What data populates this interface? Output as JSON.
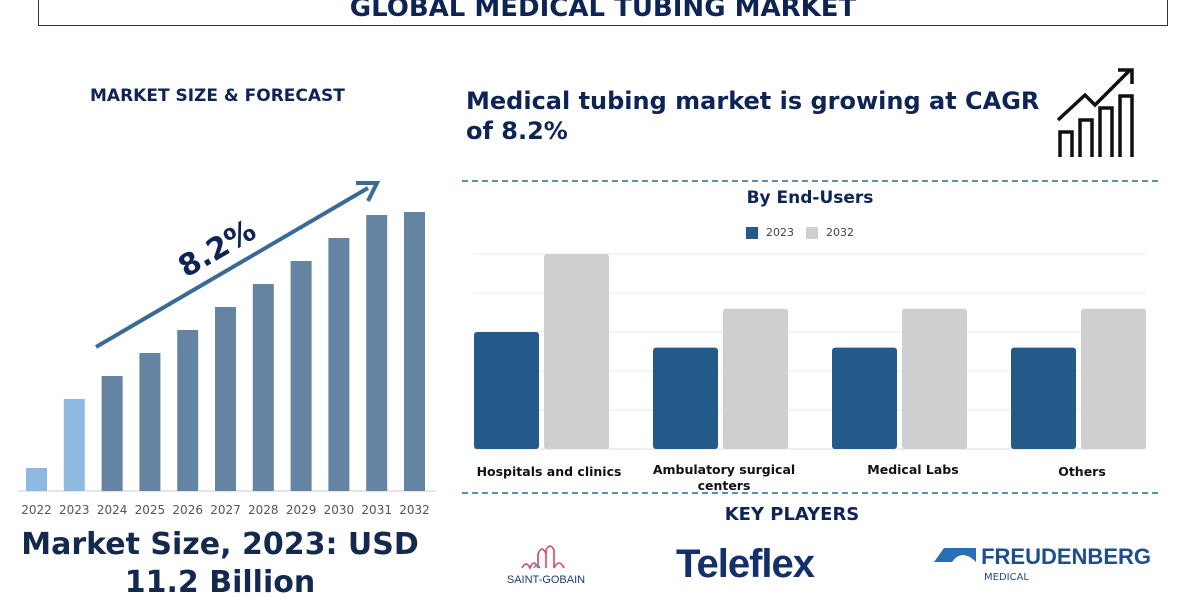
{
  "title": "GLOBAL MEDICAL TUBING MARKET",
  "left_heading": "MARKET SIZE & FORECAST",
  "cagr_text": "Medical tubing market is growing at CAGR of 8.2%",
  "market_size_text": "Market Size, 2023: USD 11.2 Billion",
  "key_players_heading": "KEY PLAYERS",
  "key_players": [
    "SAINT-GOBAIN",
    "Teleflex",
    "FREUDENBERG",
    "MEDICAL"
  ],
  "icons": [
    "growth-chart-icon"
  ],
  "chart_data": [
    {
      "type": "bar",
      "categories": [
        "2022",
        "2023",
        "2024",
        "2025",
        "2026",
        "2027",
        "2028",
        "2029",
        "2030",
        "2031",
        "2032"
      ],
      "values": [
        23,
        92,
        115,
        138,
        161,
        184,
        207,
        230,
        253,
        276,
        279
      ],
      "annotation": "8.2%",
      "colors": {
        "historical": "#8db8e0",
        "forecast": "#6583a3",
        "arrow": "#3a6b96"
      },
      "grid": false
    },
    {
      "type": "bar",
      "title": "By End-Users",
      "categories": [
        "Hospitals and clinics",
        "Ambulatory surgical centers",
        "Medical Labs",
        "Others"
      ],
      "series": [
        {
          "name": "2023",
          "values": [
            3.0,
            2.6,
            2.6,
            2.6
          ],
          "color": "#245a8a"
        },
        {
          "name": "2032",
          "values": [
            5.0,
            3.6,
            3.6,
            3.6
          ],
          "color": "#cfcfcf"
        }
      ],
      "ylim": [
        0,
        5
      ],
      "grid": true,
      "legend": "top"
    }
  ]
}
